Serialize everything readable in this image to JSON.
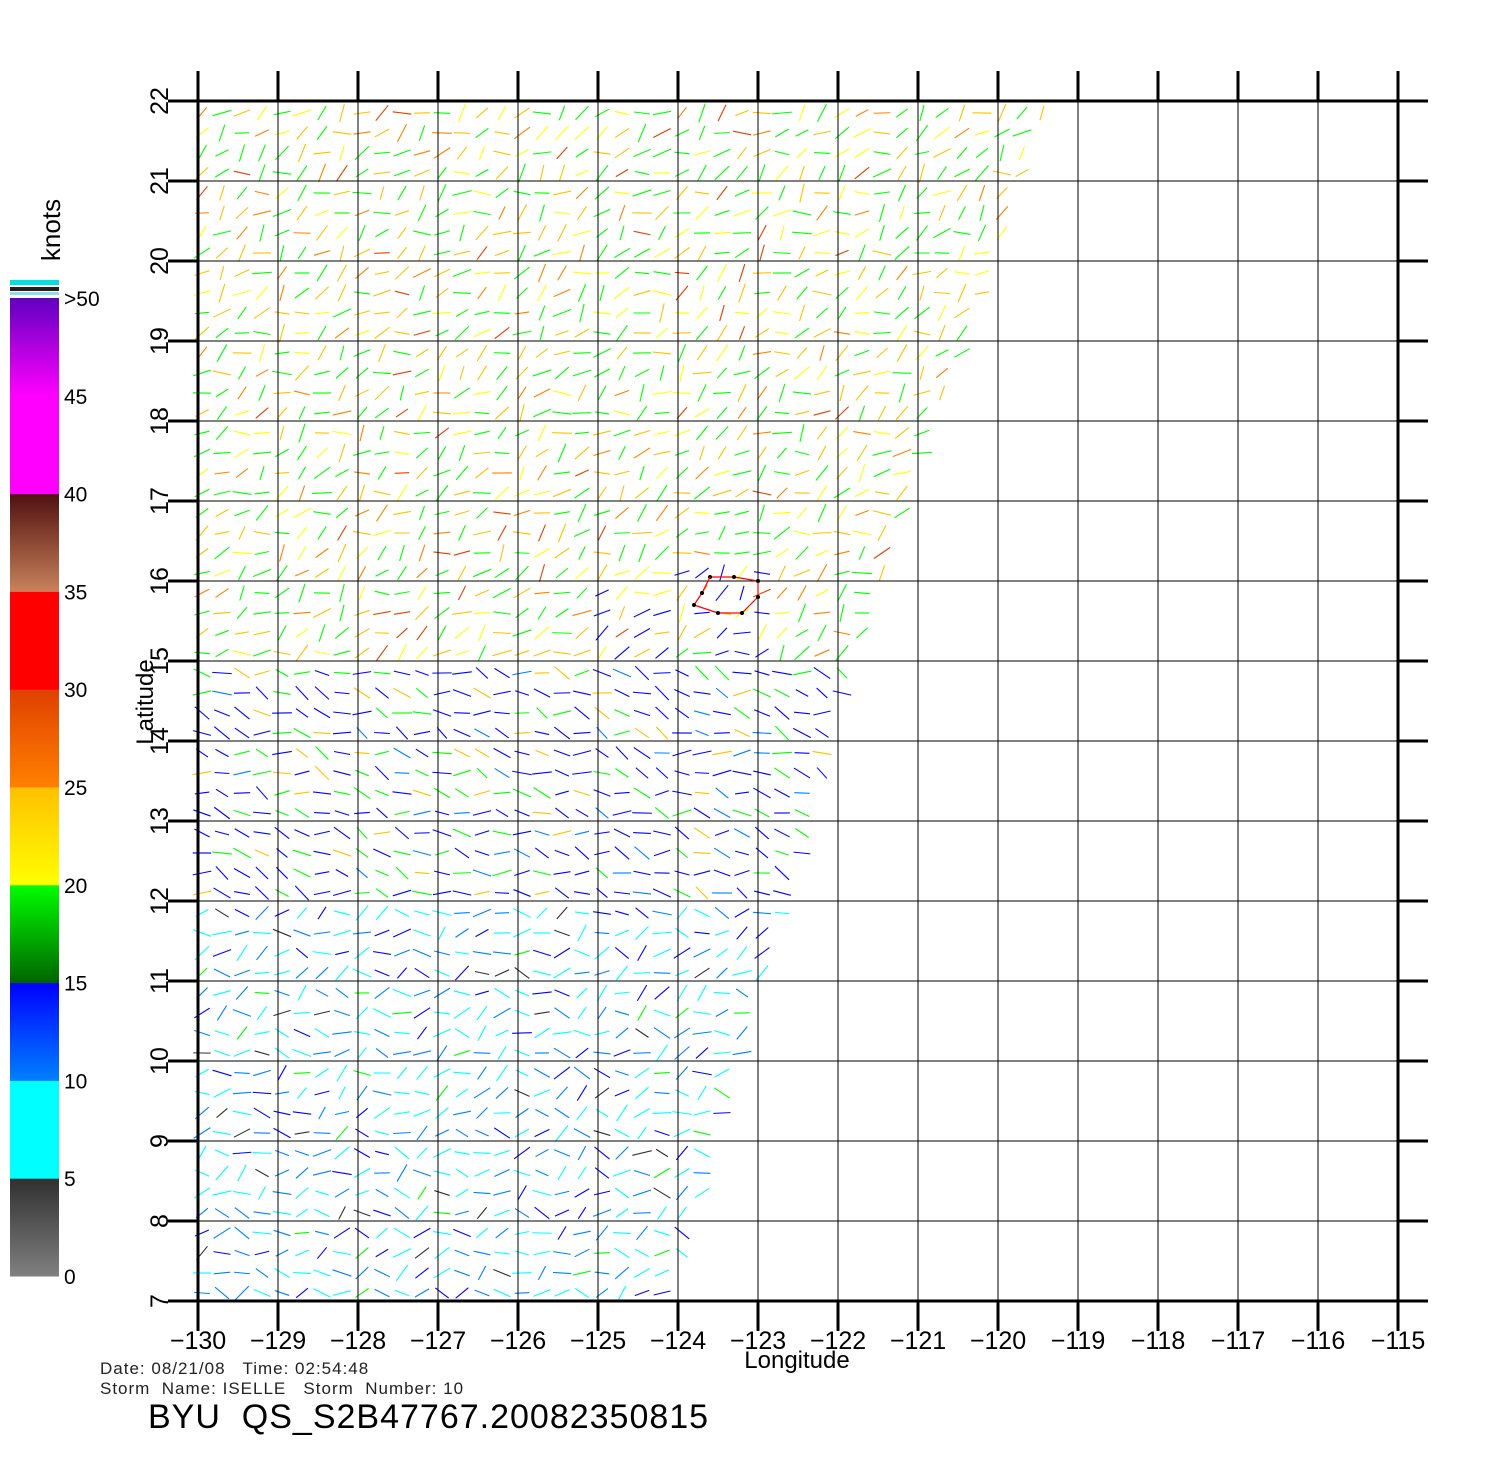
{
  "chart_data": {
    "type": "scatter",
    "plot_kind": "wind vector field (QuikSCAT swath)",
    "xlabel": "Longitude",
    "ylabel": "Latitude",
    "xlim": [
      -130,
      -115
    ],
    "ylim": [
      7,
      22
    ],
    "x_ticks": [
      "−130",
      "−129",
      "−128",
      "−127",
      "−126",
      "−125",
      "−124",
      "−123",
      "−122",
      "−121",
      "−120",
      "−119",
      "−118",
      "−117",
      "−116",
      "−115"
    ],
    "y_ticks": [
      "7",
      "8",
      "9",
      "10",
      "11",
      "12",
      "13",
      "14",
      "15",
      "16",
      "17",
      "18",
      "19",
      "20",
      "21",
      "22"
    ],
    "grid": true,
    "swath_polygon": [
      [
        -130,
        22.05
      ],
      [
        -119.3,
        22.05
      ],
      [
        -121,
        17.3
      ],
      [
        -121.7,
        15.3
      ],
      [
        -122,
        14.3
      ],
      [
        -122.3,
        12.9
      ],
      [
        -122.8,
        11.5
      ],
      [
        -123.5,
        9
      ],
      [
        -124.1,
        7
      ],
      [
        -130,
        7
      ]
    ],
    "storm_marker": [
      [
        -123.6,
        16.05
      ],
      [
        -123.3,
        16.05
      ],
      [
        -123.0,
        16.0
      ],
      [
        -123.0,
        15.8
      ],
      [
        -123.2,
        15.6
      ],
      [
        -123.5,
        15.6
      ],
      [
        -123.8,
        15.7
      ],
      [
        -123.7,
        15.85
      ]
    ],
    "colorbar": {
      "unit": "knots",
      "tick_labels": [
        "0",
        "5",
        "10",
        "15",
        "20",
        "25",
        "30",
        "35",
        "40",
        "45",
        ">50"
      ],
      "position": "left",
      "colors": {
        "gray_low": "#808080",
        "gray_high": "#303030",
        "cyan": "#00ffff",
        "blue_mid": "#0080ff",
        "blue": "#0000ff",
        "green_dark": "#006400",
        "green": "#00ff00",
        "yellow": "#ffff00",
        "orange_yellow": "#ffc000",
        "orange": "#ff8000",
        "red_orange": "#e04000",
        "red": "#ff0000",
        "tan": "#c8825a",
        "brown": "#501010",
        "magenta": "#ff00ff",
        "purple": "#6000c0"
      }
    },
    "wind_regions": [
      {
        "lat_range": [
          15,
          22
        ],
        "dominant_speed_kt": "15-25",
        "colors": [
          "green",
          "yellow",
          "orange"
        ]
      },
      {
        "lat_range": [
          12,
          15
        ],
        "dominant_speed_kt": "10-20",
        "colors": [
          "blue",
          "green"
        ]
      },
      {
        "lat_range": [
          7,
          12
        ],
        "dominant_speed_kt": "5-15",
        "colors": [
          "cyan",
          "blue"
        ]
      }
    ]
  },
  "footer": {
    "date_label": "Date:",
    "date": "08/21/08",
    "time_label": "Time:",
    "time": "02:54:48",
    "storm_name_label": "Storm  Name:",
    "storm_name": "ISELLE",
    "storm_number_label": "Storm  Number:",
    "storm_number": "10",
    "product": "BYU  QS_S2B47767.20082350815"
  }
}
